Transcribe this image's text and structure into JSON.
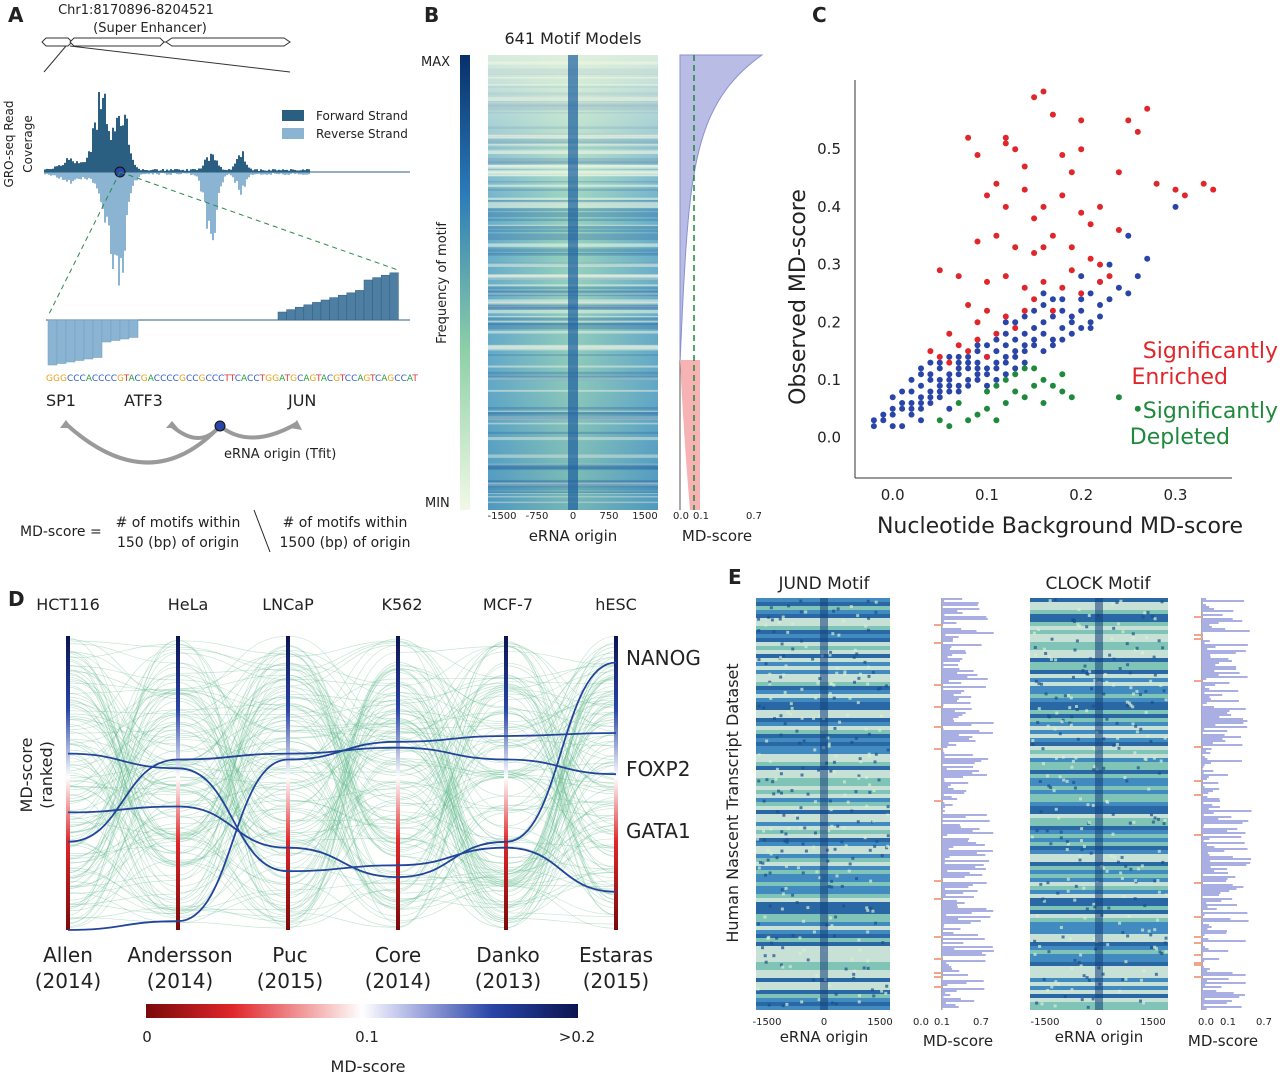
{
  "panels": {
    "a": "A",
    "b": "B",
    "c": "C",
    "d": "D",
    "e": "E"
  },
  "panelA": {
    "region": "Chr1:8170896-8204521",
    "region_type": "(Super Enhancer)",
    "ylabel_line1": "GRO-seq Read",
    "ylabel_line2": "Coverage",
    "legend_forward": "Forward Strand",
    "legend_reverse": "Reverse Strand",
    "sequence": "GGGCCCACCCCGTACGACCCCGCCGCCCTTCACCTGGATGCAGTACGTCCAGTCAGCCAT",
    "motifs": [
      "SP1",
      "ATF3",
      "JUN"
    ],
    "origin_label": "eRNA origin (Tfit)",
    "formula_lhs": "MD-score  =",
    "numerator_1": "# of motifs within",
    "numerator_2": "150 (bp) of origin",
    "denominator_1": "# of motifs within",
    "denominator_2": "1500 (bp) of origin",
    "colors": {
      "forward": "#2b5f82",
      "reverse": "#8ab4d2"
    }
  },
  "panelB": {
    "title": "641 Motif Models",
    "cbar_max": "MAX",
    "cbar_min": "MIN",
    "cbar_label": "Frequency of motif",
    "heat_xticks": [
      "-1500",
      "-750",
      "0",
      "750",
      "1500"
    ],
    "heat_xlabel": "eRNA origin",
    "md_xticks": [
      "0.0",
      "0.1",
      "0.7"
    ],
    "md_xlabel": "MD-score"
  },
  "chart_data": [
    {
      "type": "scatter",
      "panel": "C",
      "xlabel": "Nucleotide Background MD-score",
      "ylabel": "Observed MD-score",
      "xticks": [
        "0.0",
        "0.1",
        "0.2",
        "0.3"
      ],
      "yticks": [
        "0.0",
        "0.1",
        "0.2",
        "0.3",
        "0.4",
        "0.5"
      ],
      "xlim": [
        -0.04,
        0.36
      ],
      "ylim": [
        -0.07,
        0.62
      ],
      "series": [
        {
          "name": "Significantly Enriched",
          "color": "#e0262b",
          "points": [
            [
              0.27,
              0.57
            ],
            [
              0.2,
              0.55
            ],
            [
              0.16,
              0.6
            ],
            [
              0.15,
              0.59
            ],
            [
              0.08,
              0.52
            ],
            [
              0.09,
              0.49
            ],
            [
              0.12,
              0.51
            ],
            [
              0.13,
              0.5
            ],
            [
              0.17,
              0.56
            ],
            [
              0.25,
              0.55
            ],
            [
              0.26,
              0.53
            ],
            [
              0.3,
              0.43
            ],
            [
              0.33,
              0.44
            ],
            [
              0.34,
              0.43
            ],
            [
              0.31,
              0.42
            ],
            [
              0.28,
              0.44
            ],
            [
              0.24,
              0.46
            ],
            [
              0.2,
              0.5
            ],
            [
              0.19,
              0.46
            ],
            [
              0.11,
              0.44
            ],
            [
              0.1,
              0.42
            ],
            [
              0.12,
              0.4
            ],
            [
              0.14,
              0.43
            ],
            [
              0.15,
              0.38
            ],
            [
              0.16,
              0.4
            ],
            [
              0.18,
              0.42
            ],
            [
              0.2,
              0.39
            ],
            [
              0.21,
              0.37
            ],
            [
              0.22,
              0.4
            ],
            [
              0.09,
              0.34
            ],
            [
              0.11,
              0.35
            ],
            [
              0.13,
              0.33
            ],
            [
              0.15,
              0.32
            ],
            [
              0.17,
              0.35
            ],
            [
              0.19,
              0.33
            ],
            [
              0.21,
              0.31
            ],
            [
              0.22,
              0.3
            ],
            [
              0.05,
              0.29
            ],
            [
              0.07,
              0.28
            ],
            [
              0.1,
              0.27
            ],
            [
              0.12,
              0.28
            ],
            [
              0.14,
              0.26
            ],
            [
              0.16,
              0.27
            ],
            [
              0.18,
              0.26
            ],
            [
              0.2,
              0.25
            ],
            [
              0.08,
              0.23
            ],
            [
              0.1,
              0.22
            ],
            [
              0.12,
              0.21
            ],
            [
              0.14,
              0.22
            ],
            [
              0.06,
              0.18
            ],
            [
              0.07,
              0.16
            ],
            [
              0.08,
              0.15
            ],
            [
              0.09,
              0.17
            ],
            [
              0.11,
              0.18
            ],
            [
              0.13,
              0.19
            ],
            [
              0.04,
              0.15
            ],
            [
              0.05,
              0.14
            ],
            [
              0.06,
              0.13
            ],
            [
              0.1,
              0.14
            ],
            [
              0.09,
              0.2
            ],
            [
              0.15,
              0.24
            ],
            [
              0.17,
              0.22
            ],
            [
              0.19,
              0.29
            ],
            [
              0.23,
              0.28
            ],
            [
              0.24,
              0.36
            ],
            [
              0.18,
              0.49
            ],
            [
              0.14,
              0.47
            ],
            [
              0.12,
              0.52
            ],
            [
              0.22,
              0.27
            ],
            [
              0.16,
              0.33
            ]
          ]
        },
        {
          "name": "Significantly Depleted",
          "color": "#1e8a3c",
          "points": [
            [
              0.13,
              0.08
            ],
            [
              0.14,
              0.07
            ],
            [
              0.15,
              0.09
            ],
            [
              0.16,
              0.1
            ],
            [
              0.12,
              0.06
            ],
            [
              0.11,
              0.09
            ],
            [
              0.1,
              0.05
            ],
            [
              0.09,
              0.04
            ],
            [
              0.08,
              0.03
            ],
            [
              0.06,
              0.02
            ],
            [
              0.05,
              0.03
            ],
            [
              0.07,
              0.06
            ],
            [
              0.13,
              0.11
            ],
            [
              0.15,
              0.12
            ],
            [
              0.17,
              0.09
            ],
            [
              0.18,
              0.11
            ],
            [
              0.19,
              0.07
            ],
            [
              0.24,
              0.07
            ],
            [
              0.26,
              0.05
            ],
            [
              0.12,
              0.1
            ],
            [
              0.14,
              0.12
            ],
            [
              0.1,
              0.08
            ],
            [
              0.16,
              0.06
            ],
            [
              0.11,
              0.03
            ],
            [
              0.18,
              0.08
            ]
          ]
        },
        {
          "name": "",
          "color": "#2a45a8",
          "points": [
            [
              0.3,
              0.4
            ],
            [
              0.25,
              0.35
            ],
            [
              0.25,
              0.25
            ],
            [
              0.23,
              0.3
            ],
            [
              0.22,
              0.27
            ],
            [
              0.21,
              0.25
            ],
            [
              0.2,
              0.24
            ],
            [
              0.19,
              0.2
            ],
            [
              0.18,
              0.22
            ],
            [
              0.17,
              0.21
            ],
            [
              0.16,
              0.2
            ],
            [
              0.15,
              0.19
            ],
            [
              0.14,
              0.18
            ],
            [
              0.13,
              0.17
            ],
            [
              0.12,
              0.16
            ],
            [
              0.11,
              0.15
            ],
            [
              0.1,
              0.14
            ],
            [
              0.09,
              0.13
            ],
            [
              0.08,
              0.12
            ],
            [
              0.07,
              0.11
            ],
            [
              0.06,
              0.1
            ],
            [
              0.05,
              0.09
            ],
            [
              0.04,
              0.08
            ],
            [
              0.03,
              0.07
            ],
            [
              0.02,
              0.06
            ],
            [
              0.01,
              0.05
            ],
            [
              0.0,
              0.04
            ],
            [
              -0.01,
              0.03
            ],
            [
              -0.02,
              0.03
            ],
            [
              0.01,
              0.02
            ],
            [
              0.02,
              0.04
            ],
            [
              0.03,
              0.05
            ],
            [
              0.04,
              0.06
            ],
            [
              0.05,
              0.07
            ],
            [
              0.06,
              0.08
            ],
            [
              0.07,
              0.09
            ],
            [
              0.08,
              0.1
            ],
            [
              0.09,
              0.11
            ],
            [
              0.1,
              0.12
            ],
            [
              0.11,
              0.13
            ],
            [
              0.12,
              0.14
            ],
            [
              0.13,
              0.15
            ],
            [
              0.14,
              0.16
            ],
            [
              0.15,
              0.17
            ],
            [
              0.16,
              0.18
            ],
            [
              0.17,
              0.17
            ],
            [
              0.18,
              0.19
            ],
            [
              0.19,
              0.21
            ],
            [
              0.2,
              0.22
            ],
            [
              0.21,
              0.19
            ],
            [
              0.22,
              0.21
            ],
            [
              0.02,
              0.1
            ],
            [
              0.03,
              0.12
            ],
            [
              0.04,
              0.11
            ],
            [
              0.05,
              0.12
            ],
            [
              0.06,
              0.14
            ],
            [
              0.07,
              0.13
            ],
            [
              0.08,
              0.14
            ],
            [
              0.09,
              0.15
            ],
            [
              0.1,
              0.16
            ],
            [
              0.11,
              0.17
            ],
            [
              0.12,
              0.18
            ],
            [
              0.13,
              0.2
            ],
            [
              0.14,
              0.21
            ],
            [
              0.15,
              0.22
            ],
            [
              0.16,
              0.23
            ],
            [
              0.17,
              0.24
            ],
            [
              0.0,
              0.07
            ],
            [
              0.01,
              0.08
            ],
            [
              0.02,
              0.08
            ],
            [
              0.03,
              0.09
            ],
            [
              0.04,
              0.1
            ],
            [
              0.05,
              0.1
            ],
            [
              0.06,
              0.11
            ],
            [
              0.07,
              0.12
            ],
            [
              0.08,
              0.13
            ],
            [
              0.09,
              0.12
            ],
            [
              0.1,
              0.11
            ],
            [
              0.11,
              0.12
            ],
            [
              0.12,
              0.13
            ],
            [
              0.13,
              0.14
            ],
            [
              0.14,
              0.15
            ],
            [
              0.15,
              0.16
            ],
            [
              0.16,
              0.15
            ],
            [
              0.17,
              0.16
            ],
            [
              0.18,
              0.17
            ],
            [
              0.19,
              0.18
            ],
            [
              0.2,
              0.19
            ],
            [
              0.21,
              0.2
            ],
            [
              0.22,
              0.23
            ],
            [
              0.23,
              0.24
            ],
            [
              0.01,
              0.06
            ],
            [
              0.02,
              0.05
            ],
            [
              0.03,
              0.06
            ],
            [
              0.04,
              0.07
            ],
            [
              0.05,
              0.08
            ],
            [
              0.06,
              0.09
            ],
            [
              0.07,
              0.08
            ],
            [
              0.08,
              0.09
            ],
            [
              0.09,
              0.1
            ],
            [
              0.1,
              0.09
            ],
            [
              0.11,
              0.1
            ],
            [
              0.12,
              0.11
            ],
            [
              0.13,
              0.12
            ],
            [
              0.14,
              0.13
            ],
            [
              0.0,
              0.05
            ],
            [
              -0.01,
              0.04
            ],
            [
              -0.02,
              0.02
            ],
            [
              0.0,
              0.02
            ],
            [
              0.03,
              0.03
            ],
            [
              0.06,
              0.05
            ],
            [
              0.26,
              0.28
            ],
            [
              0.27,
              0.31
            ],
            [
              0.24,
              0.26
            ],
            [
              0.2,
              0.28
            ],
            [
              0.18,
              0.24
            ],
            [
              0.16,
              0.25
            ],
            [
              0.12,
              0.2
            ],
            [
              0.09,
              0.16
            ],
            [
              0.07,
              0.14
            ],
            [
              0.05,
              0.13
            ],
            [
              0.04,
              0.13
            ],
            [
              0.03,
              0.11
            ]
          ]
        }
      ],
      "legend": [
        {
          "line1": "Significantly",
          "line2": "Enriched",
          "color": "#e0262b"
        },
        {
          "line1": "Significantly",
          "line2": "Depleted",
          "color": "#1e8a3c"
        }
      ]
    }
  ],
  "panelD": {
    "cell_lines": [
      "HCT116",
      "HeLa",
      "LNCaP",
      "K562",
      "MCF-7",
      "hESC"
    ],
    "datasets": [
      {
        "name": "Allen",
        "year": "(2014)"
      },
      {
        "name": "Andersson",
        "year": "(2014)"
      },
      {
        "name": "Puc",
        "year": "(2015)"
      },
      {
        "name": "Core",
        "year": "(2014)"
      },
      {
        "name": "Danko",
        "year": "(2013)"
      },
      {
        "name": "Estaras",
        "year": "(2015)"
      }
    ],
    "ylabel_line1": "MD-score",
    "ylabel_line2": "(ranked)",
    "highlighted": [
      {
        "name": "NANOG",
        "ranks": [
          0.4,
          0.42,
          0.28,
          0.18,
          0.3,
          0.91
        ]
      },
      {
        "name": "FOXP2",
        "ranks": [
          0.6,
          0.55,
          0.2,
          0.22,
          0.28,
          0.13
        ]
      },
      {
        "name": "GATA1",
        "ranks": [
          0.3,
          0.58,
          0.6,
          0.62,
          0.58,
          0.53
        ]
      },
      {
        "name": "",
        "ranks": [
          0.0,
          0.03,
          0.58,
          0.64,
          0.66,
          0.67
        ]
      }
    ],
    "cbar_ticks": [
      "0",
      "0.1",
      ">0.2"
    ],
    "cbar_label": "MD-score"
  },
  "panelE": {
    "ylabel": "Human Nascent Transcript Dataset",
    "motifs": [
      {
        "title": "JUND Motif",
        "xticks": [
          "-1500",
          "0",
          "1500"
        ],
        "xlabel": "eRNA origin",
        "md_ticks": [
          "0.0",
          "0.1",
          "0.7"
        ],
        "md_label": "MD-score"
      },
      {
        "title": "CLOCK Motif",
        "xticks": [
          "-1500",
          "0",
          "1500"
        ],
        "xlabel": "eRNA origin",
        "md_ticks": [
          "0.0",
          "0.1",
          "0.7"
        ],
        "md_label": "MD-score"
      }
    ]
  }
}
